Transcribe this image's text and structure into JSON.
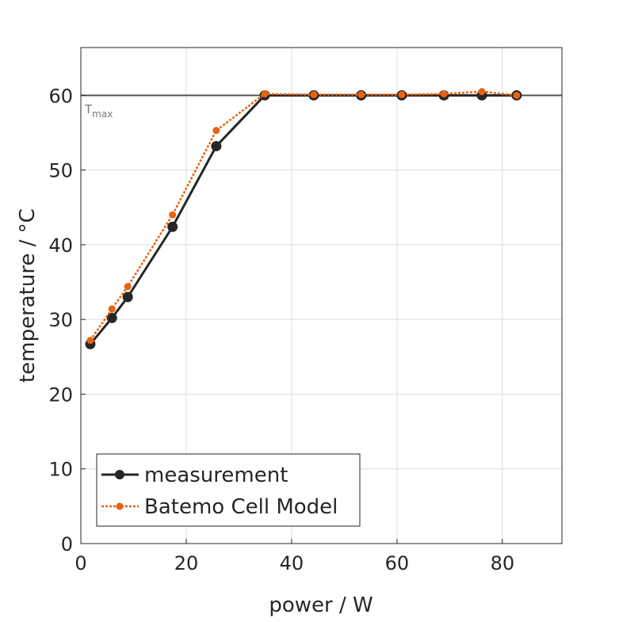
{
  "chart_data": {
    "type": "line",
    "title": "",
    "xlabel": "power / W",
    "ylabel": "temperature / °C",
    "xlim": [
      0,
      91.3
    ],
    "ylim": [
      0,
      66.4
    ],
    "xticks": [
      0,
      20,
      40,
      60,
      80
    ],
    "yticks": [
      0,
      10,
      20,
      30,
      40,
      50,
      60
    ],
    "xtick_labels": [
      "0",
      "20",
      "40",
      "60",
      "80"
    ],
    "ytick_labels": [
      "0",
      "10",
      "20",
      "30",
      "40",
      "50",
      "60"
    ],
    "grid": true,
    "legend_position": "bottom-left",
    "reference_line": {
      "y": 60,
      "label_main": "T",
      "label_sub": "max",
      "color": "#555555"
    },
    "series": [
      {
        "name": "measurement",
        "color": "#262626",
        "style": "solid",
        "x": [
          1.8,
          5.9,
          8.9,
          17.4,
          25.7,
          34.9,
          44.2,
          53.2,
          60.9,
          68.9,
          76.1,
          82.7
        ],
        "y": [
          26.7,
          30.2,
          33.0,
          42.4,
          53.2,
          60.0,
          60.0,
          60.0,
          60.0,
          60.0,
          60.0,
          60.0
        ]
      },
      {
        "name": "Batemo Cell Model",
        "color": "#E8620F",
        "style": "dotted",
        "x": [
          1.8,
          5.9,
          8.9,
          17.4,
          25.7,
          34.9,
          44.2,
          53.2,
          60.9,
          68.9,
          76.1,
          82.7
        ],
        "y": [
          27.2,
          31.4,
          34.4,
          44.0,
          55.3,
          60.2,
          60.1,
          60.1,
          60.1,
          60.2,
          60.5,
          60.0
        ]
      }
    ]
  }
}
